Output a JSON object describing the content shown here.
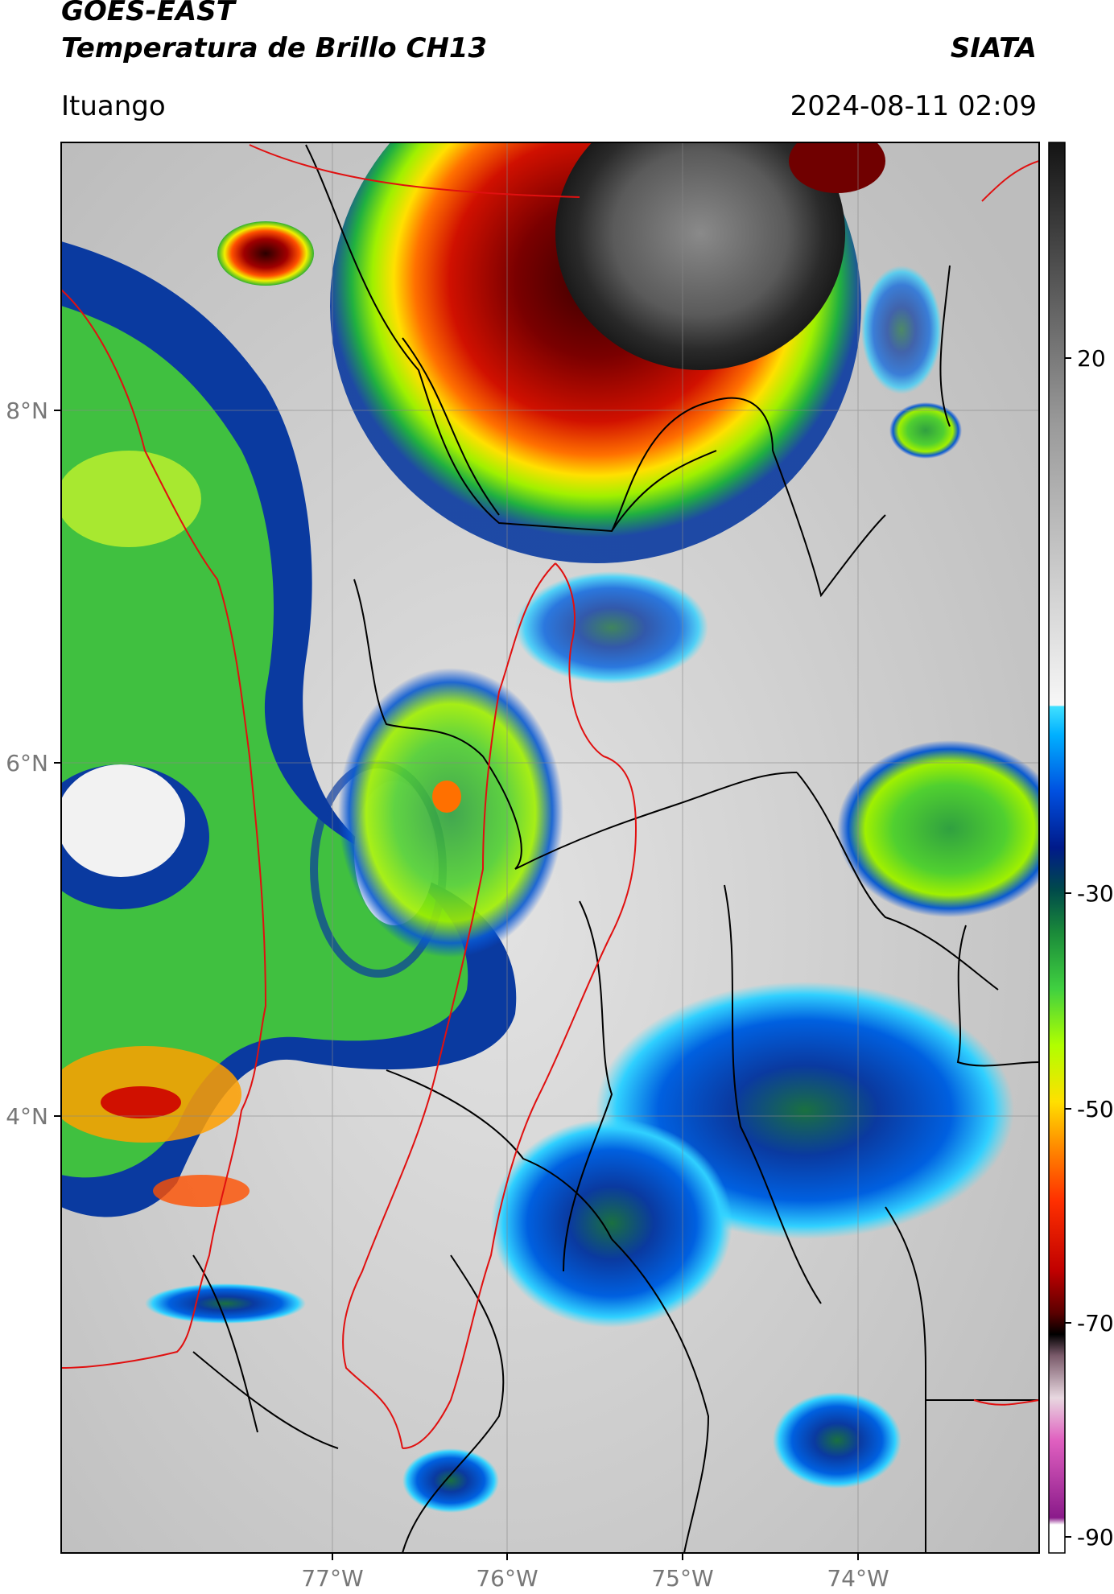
{
  "header": {
    "satellite": "GOES-EAST",
    "product": "Temperatura de Brillo CH13",
    "organization": "SIATA",
    "location": "Ituango",
    "timestamp": "2024-08-11 02:09"
  },
  "map": {
    "lon_range": [
      -78.55,
      -72.95
    ],
    "lat_range": [
      1.55,
      9.55
    ],
    "lon_ticks": [
      "77°W",
      "76°W",
      "75°W",
      "74°W"
    ],
    "lat_ticks": [
      "8°N",
      "6°N",
      "4°N"
    ],
    "grid": true,
    "boundaries": [
      "country-and-department-borders-black",
      "watershed-outline-red"
    ]
  },
  "colorbar": {
    "range": [
      -90,
      40
    ],
    "tick_labels": [
      "20",
      "-30",
      "-50",
      "-70",
      "-90"
    ],
    "gray_scale": [
      "#f7f7f7",
      "#141414"
    ],
    "colors": [
      "#ffffff",
      "#8a1a8a",
      "#e060c0",
      "#7a5a6a",
      "#000000",
      "#5a0000",
      "#c00000",
      "#ff3000",
      "#ff9000",
      "#ffe000",
      "#b0ff00",
      "#40d040",
      "#1a8a3a",
      "#004a4a",
      "#001a8a",
      "#0050e0",
      "#00b0ff",
      "#40e0ff"
    ]
  }
}
